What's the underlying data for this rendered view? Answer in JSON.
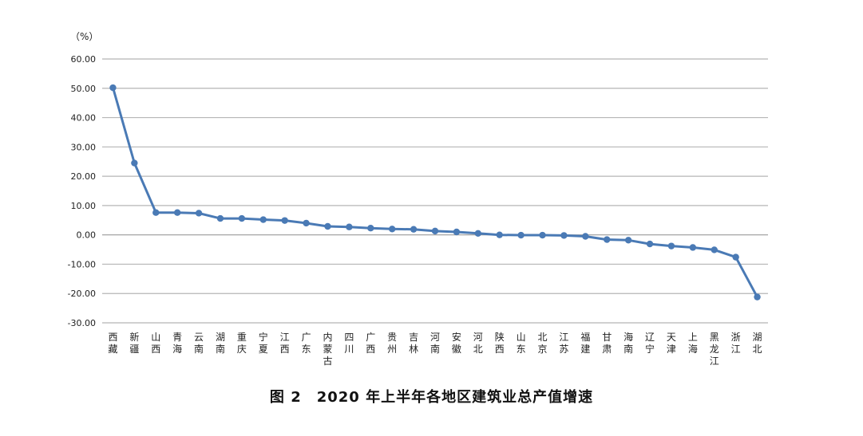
{
  "chart_data": {
    "type": "line",
    "ylabel": "（%）",
    "ylim": [
      -30,
      60
    ],
    "ytick_step": 10,
    "ytick_labels": [
      "-30.00",
      "-20.00",
      "-10.00",
      "0.00",
      "10.00",
      "20.00",
      "30.00",
      "40.00",
      "50.00",
      "60.00"
    ],
    "grid": true,
    "legend": "none",
    "line_color": "#4a7ab5",
    "categories": [
      "西藏",
      "新疆",
      "山西",
      "青海",
      "云南",
      "湖南",
      "重庆",
      "宁夏",
      "江西",
      "广东",
      "内蒙古",
      "四川",
      "广西",
      "贵州",
      "吉林",
      "河南",
      "安徽",
      "河北",
      "陕西",
      "山东",
      "北京",
      "江苏",
      "福建",
      "甘肃",
      "海南",
      "辽宁",
      "天津",
      "上海",
      "黑龙江",
      "浙江",
      "湖北"
    ],
    "values": [
      50.2,
      24.5,
      7.6,
      7.6,
      7.4,
      5.6,
      5.6,
      5.2,
      4.9,
      4.0,
      2.9,
      2.7,
      2.3,
      2.0,
      1.9,
      1.3,
      1.0,
      0.5,
      0.0,
      -0.1,
      -0.1,
      -0.2,
      -0.5,
      -1.6,
      -1.8,
      -3.1,
      -3.8,
      -4.3,
      -5.1,
      -7.6,
      -21.2
    ]
  },
  "caption": "图 2　2020 年上半年各地区建筑业总产值增速"
}
